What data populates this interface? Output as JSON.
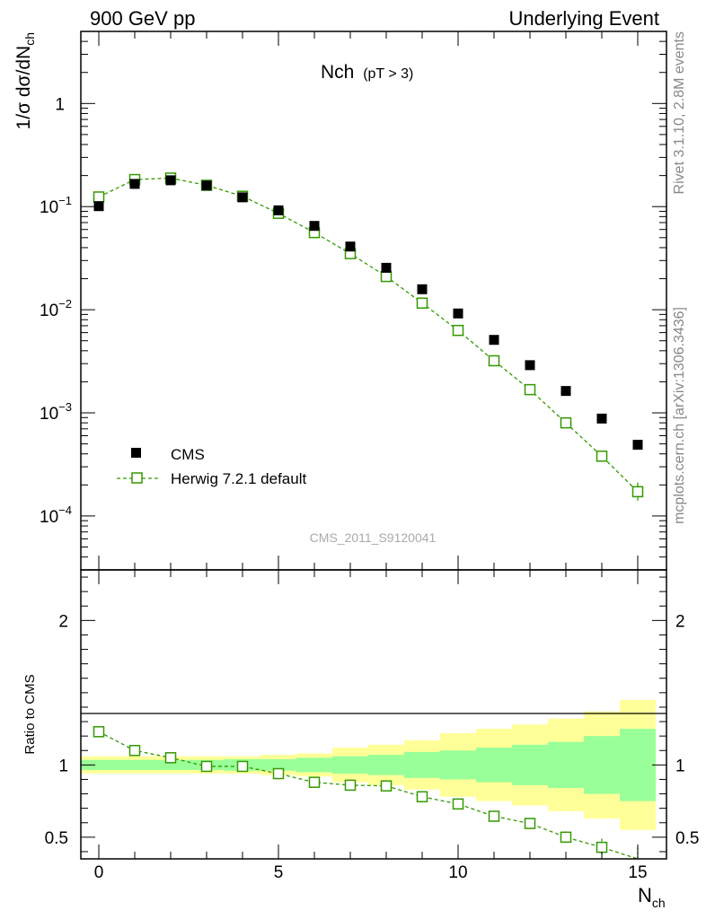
{
  "header": {
    "left": "900 GeV pp",
    "right": "Underlying Event"
  },
  "side_labels": {
    "rivet": "Rivet 3.1.10,  2.8M events",
    "mcplots": "mcplots.cern.ch [arXiv:1306.3436]"
  },
  "chart_data": [
    {
      "type": "scatter",
      "title": "Nch",
      "title_suffix": "(pT >  3)",
      "ylabel": "1/σ dσ/dN",
      "ylabel_sub": "ch",
      "xlabel": "N",
      "xlabel_sub": "ch",
      "yscale": "log",
      "xlim": [
        -0.5,
        15.8
      ],
      "ylim": [
        3e-05,
        5
      ],
      "yticks": [
        "10^-4",
        "10^-3",
        "10^-2",
        "10^-1",
        "1"
      ],
      "watermark": "CMS_2011_S9120041",
      "x": [
        0,
        1,
        2,
        3,
        4,
        5,
        6,
        7,
        8,
        9,
        10,
        11,
        12,
        13,
        14,
        15
      ],
      "series": [
        {
          "name": "CMS",
          "marker": "filled-square",
          "color": "#000000",
          "values": [
            0.101,
            0.166,
            0.18,
            0.16,
            0.123,
            0.092,
            0.065,
            0.041,
            0.0255,
            0.0158,
            0.0092,
            0.0051,
            0.0029,
            0.00163,
            0.00088,
            0.00049
          ]
        },
        {
          "name": "Herwig 7.2.1 default",
          "marker": "open-square-dashed",
          "color": "#339900",
          "values": [
            0.124,
            0.183,
            0.189,
            0.161,
            0.126,
            0.086,
            0.056,
            0.035,
            0.021,
            0.0116,
            0.0063,
            0.0032,
            0.00168,
            0.0008,
            0.00038,
            0.000172
          ]
        }
      ]
    },
    {
      "type": "scatter",
      "title": "",
      "ylabel": "Ratio to CMS",
      "xlim": [
        -0.5,
        15.8
      ],
      "ylim": [
        0.35,
        2.35
      ],
      "yticks": [
        0.5,
        1,
        2
      ],
      "xticks": [
        0,
        5,
        10,
        15
      ],
      "x": [
        0,
        1,
        2,
        3,
        4,
        5,
        6,
        7,
        8,
        9,
        10,
        11,
        12,
        13,
        14,
        15
      ],
      "bands": {
        "stat_halfwidth": [
          0.035,
          0.035,
          0.035,
          0.035,
          0.04,
          0.04,
          0.05,
          0.06,
          0.07,
          0.09,
          0.1,
          0.12,
          0.14,
          0.16,
          0.2,
          0.25
        ],
        "total_halfwidth": [
          0.06,
          0.06,
          0.06,
          0.06,
          0.06,
          0.07,
          0.08,
          0.12,
          0.14,
          0.17,
          0.22,
          0.25,
          0.28,
          0.32,
          0.37,
          0.45
        ],
        "stat_color": "#99ff99",
        "total_color": "#ffff99"
      },
      "series": [
        {
          "name": "Herwig 7.2.1 default",
          "color": "#339900",
          "values": [
            1.23,
            1.1,
            1.05,
            0.99,
            0.99,
            0.94,
            0.88,
            0.86,
            0.855,
            0.78,
            0.73,
            0.645,
            0.595,
            0.5,
            0.43,
            0.35
          ]
        }
      ]
    }
  ]
}
